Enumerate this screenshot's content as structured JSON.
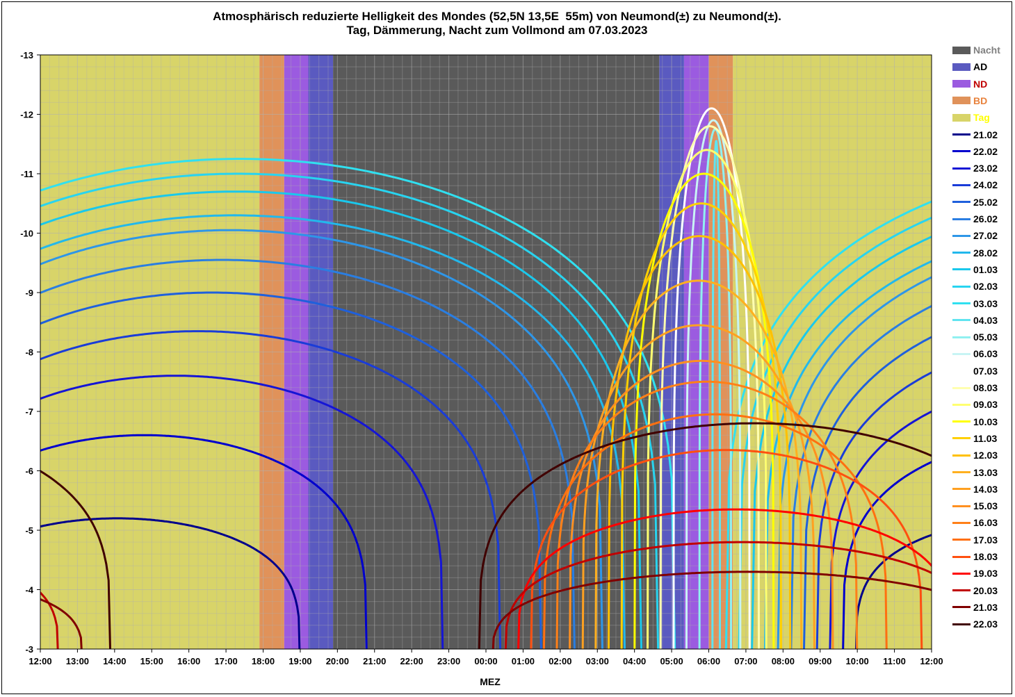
{
  "title": {
    "line1": "Atmosphärisch reduzierte Helligkeit des Mondes (52,5N 13,5E  55m) von Neumond(±) zu Neumond(±).",
    "line2": "Tag, Dämmerung, Nacht zum Vollmond am 07.03.2023"
  },
  "chart_data": {
    "type": "line",
    "title": "Atmosphärisch reduzierte Helligkeit des Mondes (52,5N 13,5E  55m) von Neumond(±) zu Neumond(±). Tag, Dämmerung, Nacht zum Vollmond am 07.03.2023",
    "xlabel": "MEZ",
    "ylabel": "",
    "x_unit": "hours after 12:00 MEZ",
    "xlim": [
      0,
      24
    ],
    "ylim": [
      -3,
      -13
    ],
    "y_inverted": true,
    "grid": true,
    "legend_position": "right",
    "x_ticks": [
      "12:00",
      "13:00",
      "14:00",
      "15:00",
      "16:00",
      "17:00",
      "18:00",
      "19:00",
      "20:00",
      "21:00",
      "22:00",
      "23:00",
      "00:00",
      "01:00",
      "02:00",
      "03:00",
      "04:00",
      "05:00",
      "06:00",
      "07:00",
      "08:00",
      "09:00",
      "10:00",
      "11:00",
      "12:00"
    ],
    "y_ticks": [
      -3,
      -4,
      -5,
      -6,
      -7,
      -8,
      -9,
      -10,
      -11,
      -12,
      -13
    ],
    "bands": [
      {
        "name": "Tag",
        "color": "#d8d469",
        "label_color": "#ffff00",
        "ranges": [
          [
            "12:00",
            "17:54"
          ],
          [
            "06:39",
            "12:00"
          ]
        ]
      },
      {
        "name": "BD",
        "color": "#e0925a",
        "label_color": "#e8823c",
        "ranges": [
          [
            "17:54",
            "18:34"
          ],
          [
            "06:00",
            "06:39"
          ]
        ]
      },
      {
        "name": "ND",
        "color": "#9b5be0",
        "label_color": "#c00000",
        "ranges": [
          [
            "18:34",
            "19:13"
          ],
          [
            "05:20",
            "06:00"
          ]
        ]
      },
      {
        "name": "AD",
        "color": "#5a5ac0",
        "label_color": "#000000",
        "ranges": [
          [
            "19:13",
            "19:53"
          ],
          [
            "04:40",
            "05:20"
          ]
        ]
      },
      {
        "name": "Nacht",
        "color": "#5a5a5a",
        "label_color": "#808080",
        "ranges": [
          [
            "19:53",
            "04:40"
          ]
        ]
      }
    ],
    "series": [
      {
        "name": "21.02",
        "color": "#00008b",
        "rise": 21.95,
        "set": 7.8,
        "peak": -5.2
      },
      {
        "name": "22.02",
        "color": "#0000cd",
        "rise": 21.6,
        "set": 9.6,
        "peak": -6.6
      },
      {
        "name": "23.02",
        "color": "#1515d5",
        "rise": 21.25,
        "set": 11.65,
        "peak": -7.6
      },
      {
        "name": "24.02",
        "color": "#1a3cd8",
        "rise": 20.9,
        "set": 13.2,
        "peak": -8.35
      },
      {
        "name": "25.02",
        "color": "#1f60dc",
        "rise": 20.55,
        "set": 14.3,
        "peak": -9.0
      },
      {
        "name": "26.02",
        "color": "#2a7ee2",
        "rise": 20.2,
        "set": 15.2,
        "peak": -9.55
      },
      {
        "name": "27.02",
        "color": "#2e96e8",
        "rise": 19.85,
        "set": 15.95,
        "peak": -10.05
      },
      {
        "name": "28.02",
        "color": "#22b8ec",
        "rise": 19.5,
        "set": 16.55,
        "peak": -10.3
      },
      {
        "name": "01.03",
        "color": "#1ac8ec",
        "rise": 19.15,
        "set": 17.0,
        "peak": -10.7
      },
      {
        "name": "02.03",
        "color": "#28d4f0",
        "rise": 18.8,
        "set": 17.45,
        "peak": -11.0
      },
      {
        "name": "03.03",
        "color": "#30e0f0",
        "rise": 18.45,
        "set": 17.9,
        "peak": -11.25
      },
      {
        "name": "04.03",
        "color": "#60e4f0",
        "rise": 18.1,
        "set": 18.3,
        "peak": -11.55
      },
      {
        "name": "05.03",
        "color": "#90f0f0",
        "rise": 17.75,
        "set": 18.6,
        "peak": -11.75
      },
      {
        "name": "06.03",
        "color": "#c8f4f4",
        "rise": 17.4,
        "set": 18.85,
        "peak": -11.9
      },
      {
        "name": "07.03",
        "color": "#ffffff",
        "rise": 17.05,
        "set": 19.1,
        "peak": -12.1
      },
      {
        "name": "08.03",
        "color": "#ffffb0",
        "rise": 16.7,
        "set": 19.35,
        "peak": -11.8
      },
      {
        "name": "09.03",
        "color": "#ffff70",
        "rise": 16.35,
        "set": 19.55,
        "peak": -11.4
      },
      {
        "name": "10.03",
        "color": "#ffff00",
        "rise": 16.0,
        "set": 19.75,
        "peak": -11.0
      },
      {
        "name": "11.03",
        "color": "#ffd000",
        "rise": 15.65,
        "set": 19.95,
        "peak": -10.5
      },
      {
        "name": "12.03",
        "color": "#ffc000",
        "rise": 15.3,
        "set": 20.2,
        "peak": -9.95
      },
      {
        "name": "13.03",
        "color": "#ffb020",
        "rise": 14.95,
        "set": 20.5,
        "peak": -9.2
      },
      {
        "name": "14.03",
        "color": "#ffa020",
        "rise": 14.6,
        "set": 20.85,
        "peak": -8.45
      },
      {
        "name": "15.03",
        "color": "#ff9020",
        "rise": 14.25,
        "set": 21.35,
        "peak": -7.85
      },
      {
        "name": "16.03",
        "color": "#ff8018",
        "rise": 13.9,
        "set": 22.0,
        "peak": -7.5
      },
      {
        "name": "17.03",
        "color": "#ff7010",
        "rise": 13.55,
        "set": 22.8,
        "peak": -6.95
      },
      {
        "name": "18.03",
        "color": "#ff5010",
        "rise": 13.2,
        "set": 23.75,
        "peak": -6.35
      },
      {
        "name": "19.03",
        "color": "#ff0000",
        "rise": 12.85,
        "set": 24.6,
        "peak": -5.35
      },
      {
        "name": "20.03",
        "color": "#c00000",
        "rise": 12.5,
        "set": 25.3,
        "peak": -4.8
      },
      {
        "name": "21.03",
        "color": "#800000",
        "rise": 12.15,
        "set": 25.95,
        "peak": -4.3
      },
      {
        "name": "22.03",
        "color": "#400000",
        "rise": 11.8,
        "set": 26.7,
        "peak": -6.8
      }
    ]
  },
  "legend": {
    "bands": [
      {
        "label": "Nacht",
        "color": "#5a5a5a",
        "text_color": "#808080"
      },
      {
        "label": "AD",
        "color": "#5a5ac0",
        "text_color": "#000000"
      },
      {
        "label": "ND",
        "color": "#9b5be0",
        "text_color": "#c00000"
      },
      {
        "label": "BD",
        "color": "#e0925a",
        "text_color": "#e8823c"
      },
      {
        "label": "Tag",
        "color": "#d8d469",
        "text_color": "#ffff00"
      }
    ]
  },
  "colors": {
    "plot_border": "#000000",
    "grid": "#b0b0b0"
  }
}
